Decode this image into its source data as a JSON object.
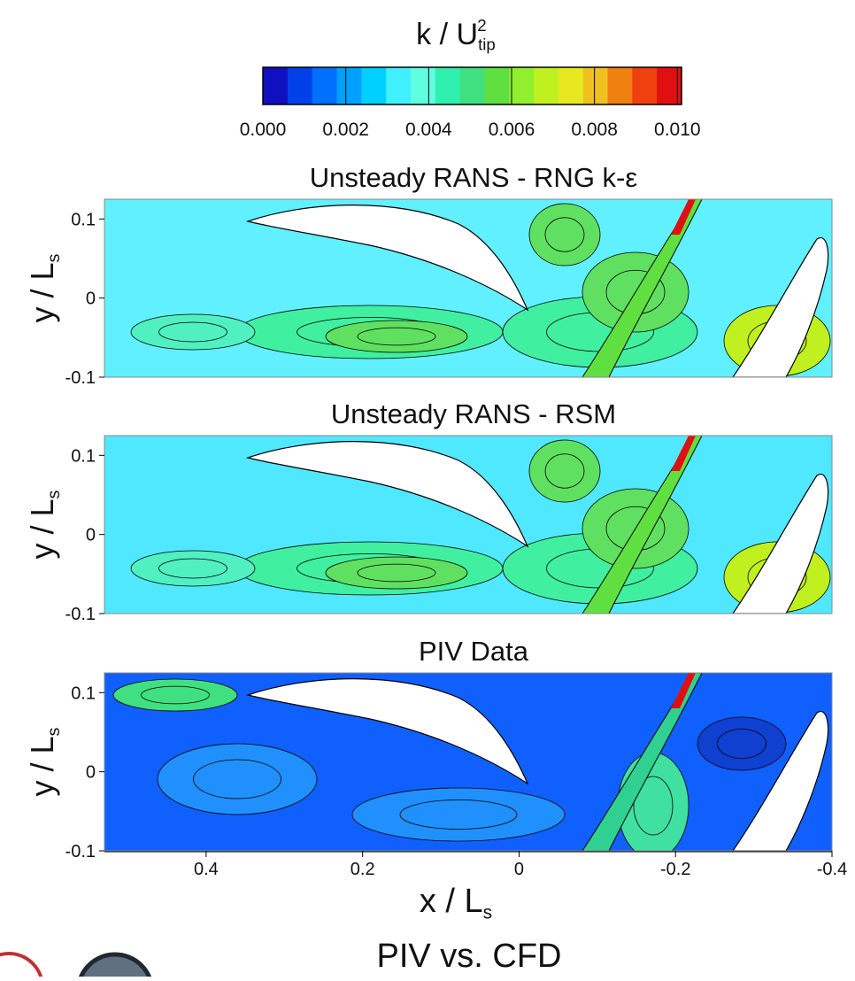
{
  "chart_data": {
    "type": "contour",
    "colorbar": {
      "title": {
        "base": "k / U",
        "sub": "tip",
        "sup": "2"
      },
      "lim": [
        0,
        0.0101
      ],
      "ticks": [
        {
          "value": 0,
          "label": "0.000"
        },
        {
          "value": 0.002,
          "label": "0.002"
        },
        {
          "value": 0.004,
          "label": "0.004"
        },
        {
          "value": 0.006,
          "label": "0.006"
        },
        {
          "value": 0.008,
          "label": "0.008"
        },
        {
          "value": 0.01,
          "label": "0.010"
        }
      ],
      "colors": [
        "#1010c0",
        "#0040e8",
        "#0070ff",
        "#00a0ff",
        "#00d0ff",
        "#40f0ff",
        "#60ffe0",
        "#30f0b0",
        "#40e080",
        "#60e040",
        "#90f030",
        "#c0f020",
        "#e8e820",
        "#f0c020",
        "#f08010",
        "#f04010",
        "#e01010"
      ]
    },
    "panels": [
      {
        "title": "Unsteady RANS - RNG k-ε",
        "base_color": "#60f0ff"
      },
      {
        "title": "Unsteady RANS - RSM",
        "base_color": "#50e8ff"
      },
      {
        "title": "PIV Data",
        "base_color": "#1060ff"
      }
    ],
    "xlim": [
      0.53,
      -0.4
    ],
    "xticks": [
      0.4,
      0.2,
      0,
      -0.2,
      -0.4
    ],
    "ylim": [
      -0.1,
      0.125
    ],
    "yticks": [
      0.1,
      0,
      -0.1
    ],
    "xlabel": {
      "base": "x / L",
      "sub": "s"
    },
    "ylabel": {
      "base": "y / L",
      "sub": "s"
    },
    "caption": "PIV vs. CFD"
  }
}
